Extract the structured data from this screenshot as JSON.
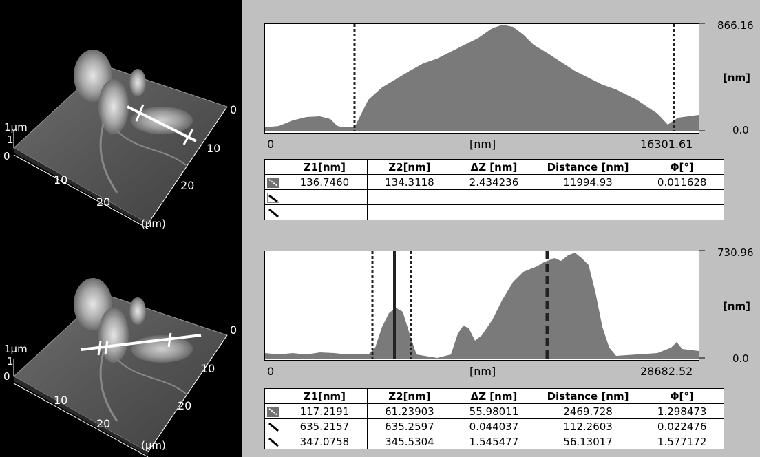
{
  "top_panel": {
    "image_labels": {
      "z_scale": "1μm",
      "z_tick": "1",
      "origin": "0",
      "x_ticks": [
        "10",
        "20"
      ],
      "y_ticks": [
        "0",
        "10",
        "20"
      ],
      "unit": "(μm)"
    },
    "profile": {
      "y_max": "866.16",
      "y_min": "0.0",
      "y_unit": "[nm]",
      "x_start": "0",
      "x_end": "16301.61",
      "x_unit": "[nm]"
    },
    "table": {
      "headers": [
        "Z1[nm]",
        "Z2[nm]",
        "ΔZ [nm]",
        "Distance [nm]",
        "Φ[°]"
      ],
      "rows": [
        [
          "136.7460",
          "134.3118",
          "2.434236",
          "11994.93",
          "0.011628"
        ],
        [
          "",
          "",
          "",
          "",
          ""
        ],
        [
          "",
          "",
          "",
          "",
          ""
        ]
      ]
    }
  },
  "bottom_panel": {
    "image_labels": {
      "z_scale": "1μm",
      "z_tick": "1",
      "origin": "0",
      "x_ticks": [
        "10",
        "20"
      ],
      "y_ticks": [
        "0",
        "10",
        "20"
      ],
      "unit": "(μm)"
    },
    "profile": {
      "y_max": "730.96",
      "y_min": "0.0",
      "y_unit": "[nm]",
      "x_start": "0",
      "x_end": "28682.52",
      "x_unit": "[nm]"
    },
    "table": {
      "headers": [
        "Z1[nm]",
        "Z2[nm]",
        "ΔZ [nm]",
        "Distance [nm]",
        "Φ[°]"
      ],
      "rows": [
        [
          "117.2191",
          "61.23903",
          "55.98011",
          "2469.728",
          "1.298473"
        ],
        [
          "635.2157",
          "635.2597",
          "0.044037",
          "112.2603",
          "0.022476"
        ],
        [
          "347.0758",
          "345.5304",
          "1.545477",
          "56.13017",
          "1.577172"
        ]
      ]
    }
  },
  "colors": {
    "profile_fill": "#7a7a7a",
    "background": "#c0c0c0",
    "image_bg": "#000000"
  }
}
